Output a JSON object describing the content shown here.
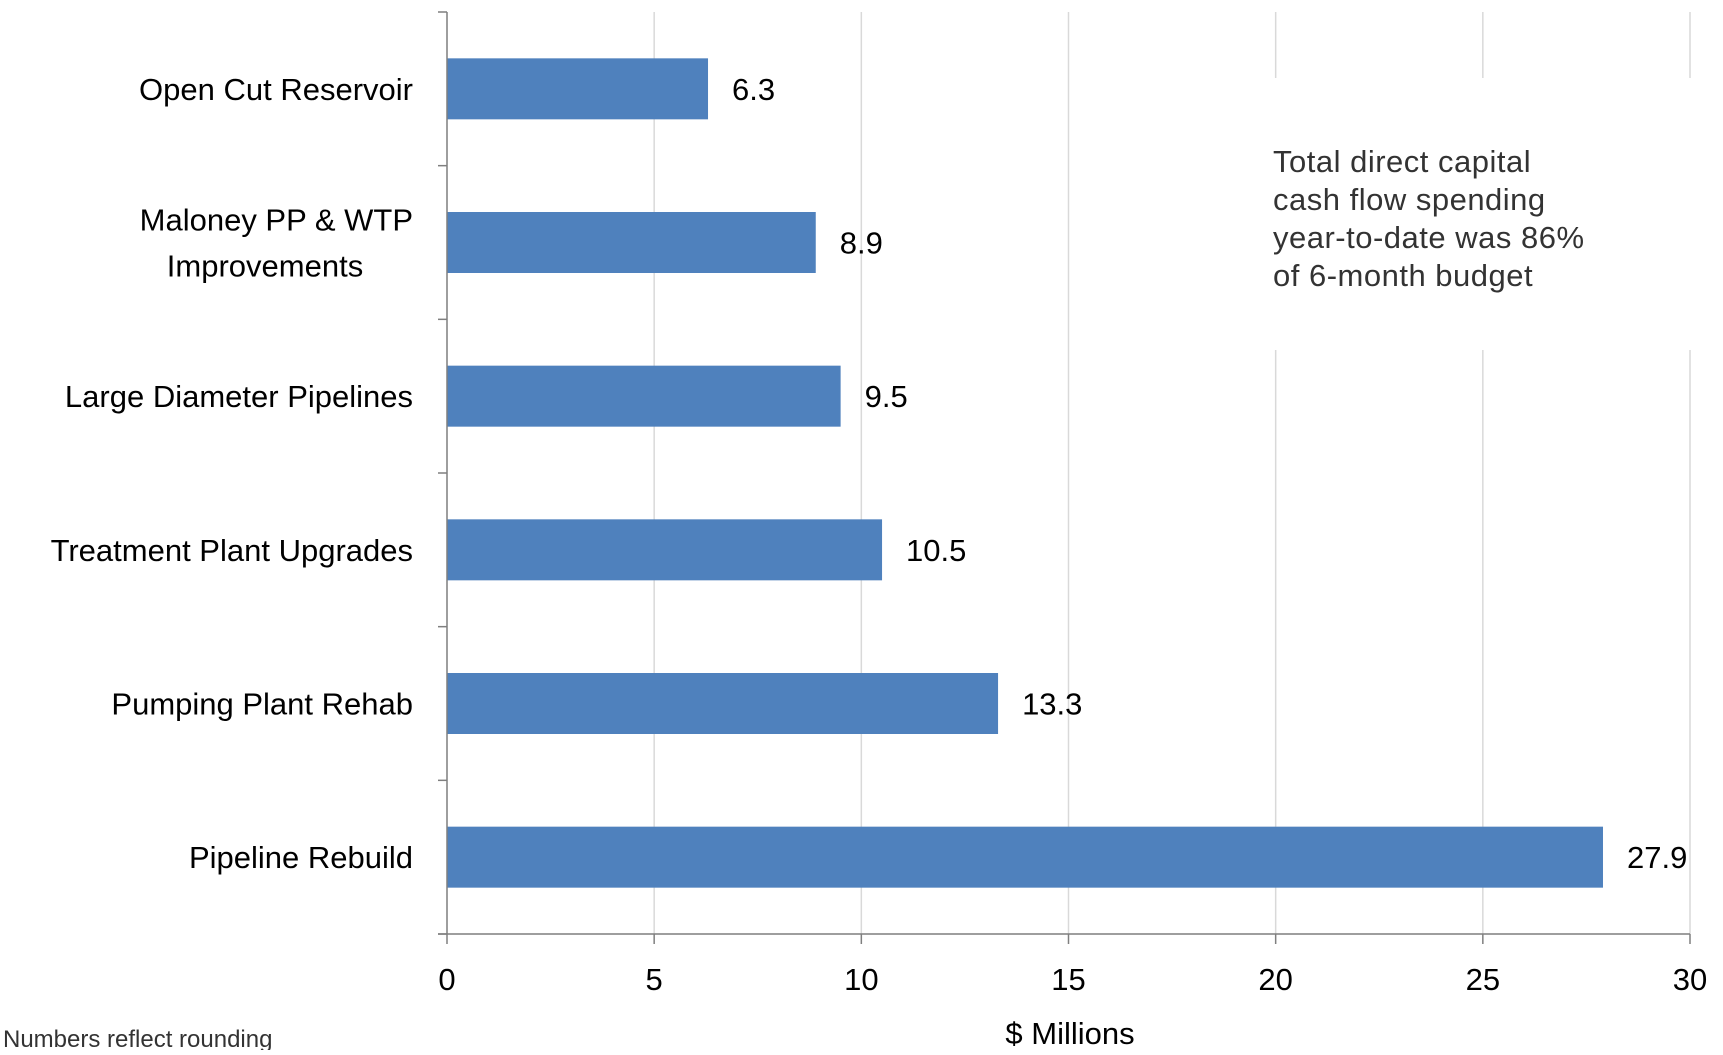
{
  "chart_data": {
    "type": "bar",
    "orientation": "horizontal",
    "categories": [
      [
        "Open Cut Reservoir"
      ],
      [
        "Maloney PP & WTP",
        "Improvements"
      ],
      [
        "Large Diameter Pipelines"
      ],
      [
        "Treatment Plant Upgrades"
      ],
      [
        "Pumping Plant Rehab"
      ],
      [
        "Pipeline Rebuild"
      ]
    ],
    "values": [
      6.3,
      8.9,
      9.5,
      10.5,
      13.3,
      27.9
    ],
    "data_labels": [
      "6.3",
      "8.9",
      "9.5",
      "10.5",
      "13.3",
      "27.9"
    ],
    "xlabel": "$ Millions",
    "ylabel": "",
    "xlim": [
      0,
      30
    ],
    "xticks": [
      0,
      5,
      10,
      15,
      20,
      25,
      30
    ],
    "xtick_labels": [
      "0",
      "5",
      "10",
      "15",
      "20",
      "25",
      "30"
    ],
    "grid": "vertical",
    "bar_color": "#4f81bd",
    "grid_color": "#d9d9d9",
    "annotation": [
      "Total direct capital",
      "cash flow spending",
      "year-to-date was 86%",
      "of 6-month budget"
    ]
  },
  "footnote": "Numbers reflect rounding"
}
